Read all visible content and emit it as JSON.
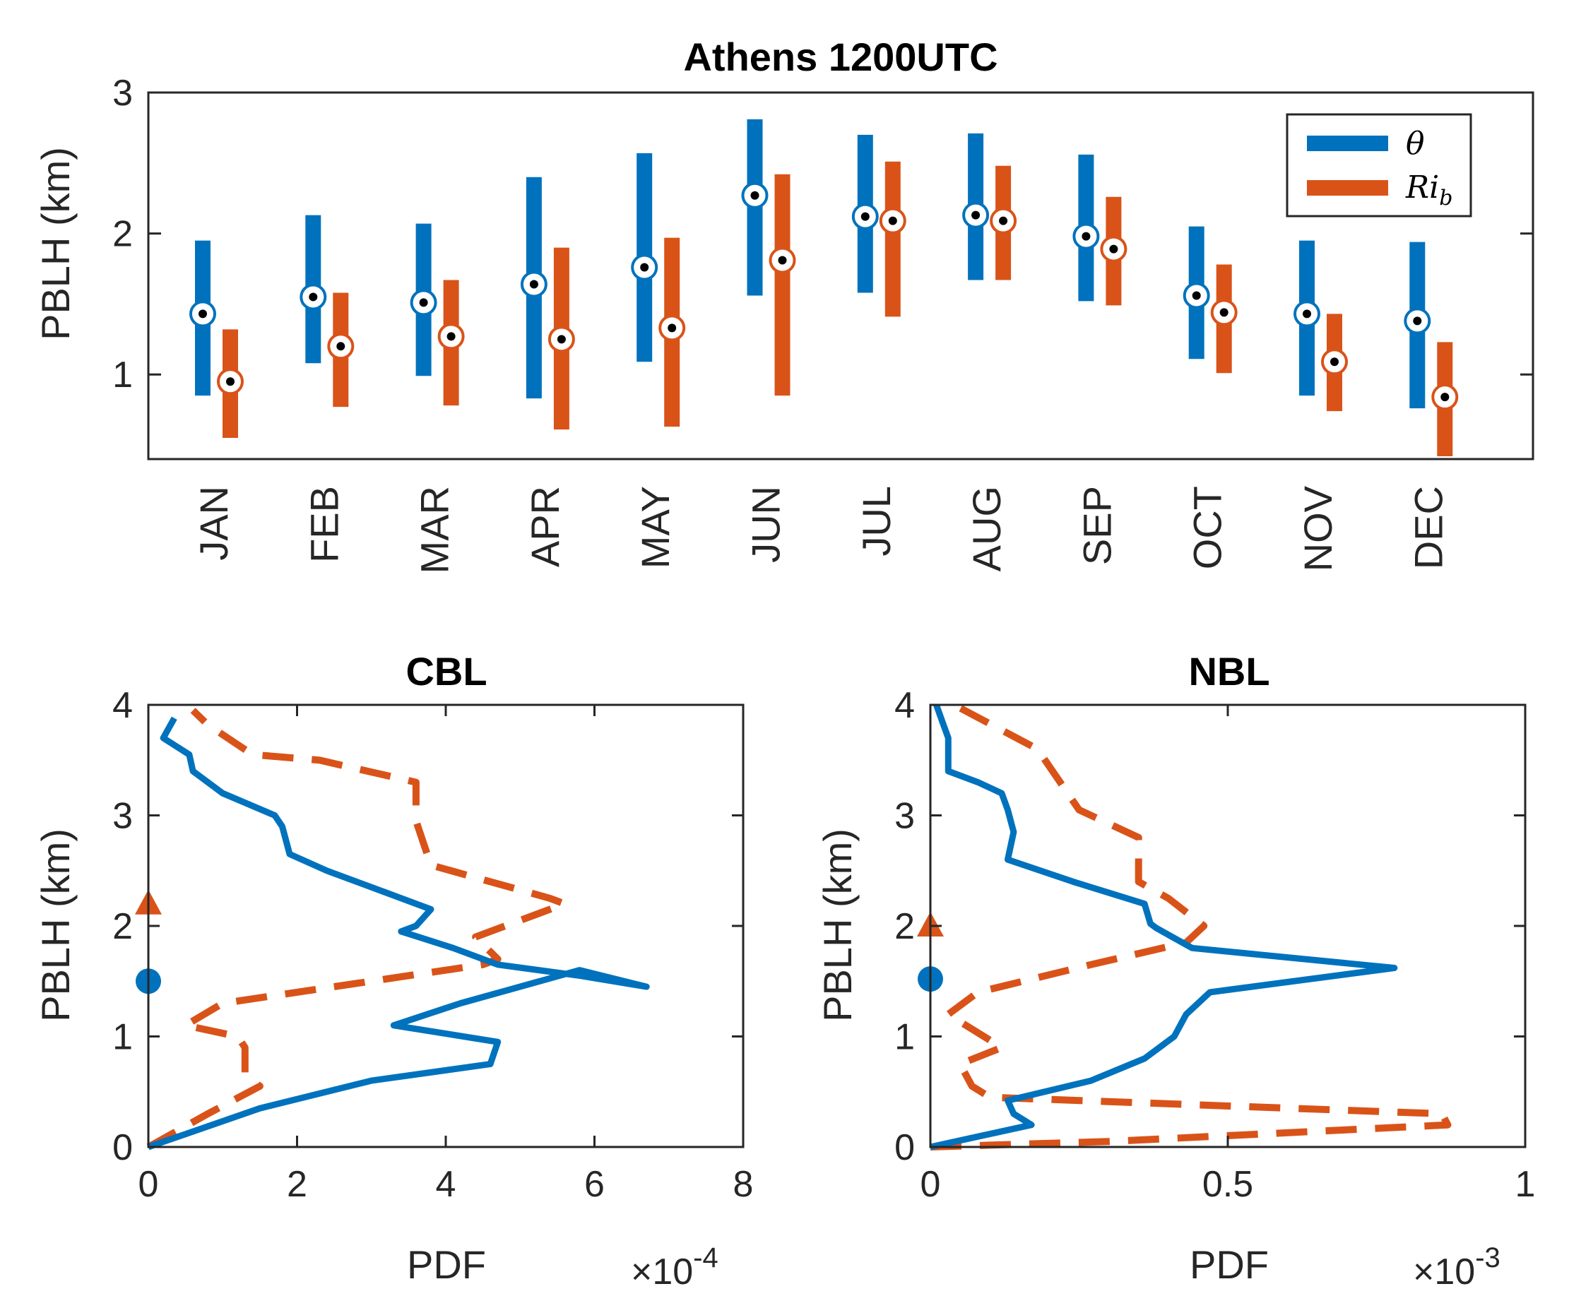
{
  "colors": {
    "theta": "#0072BD",
    "ri": "#D95319",
    "axis": "#262626"
  },
  "chart_data": [
    {
      "id": "top",
      "type": "range-bar",
      "title": "Athens 1200UTC",
      "ylabel": "PBLH (km)",
      "xlabel": "",
      "ylim": [
        0.4,
        3
      ],
      "yticks": [
        1,
        2,
        3
      ],
      "categories": [
        "JAN",
        "FEB",
        "MAR",
        "APR",
        "MAY",
        "JUN",
        "JUL",
        "AUG",
        "SEP",
        "OCT",
        "NOV",
        "DEC"
      ],
      "legend": {
        "location": "top-right",
        "entries": [
          {
            "key": "theta",
            "label": "θ"
          },
          {
            "key": "ri",
            "label": "Ri",
            "sub": "b"
          }
        ]
      },
      "series": [
        {
          "name": "θ",
          "key": "theta",
          "low": [
            0.85,
            1.08,
            0.99,
            0.83,
            1.09,
            1.56,
            1.58,
            1.67,
            1.52,
            1.11,
            0.85,
            0.76
          ],
          "high": [
            1.95,
            2.13,
            2.07,
            2.4,
            2.57,
            2.81,
            2.7,
            2.71,
            2.56,
            2.05,
            1.95,
            1.94
          ],
          "median": [
            1.43,
            1.55,
            1.51,
            1.64,
            1.76,
            2.27,
            2.12,
            2.13,
            1.98,
            1.56,
            1.43,
            1.38
          ]
        },
        {
          "name": "Ri_b",
          "key": "ri",
          "low": [
            0.55,
            0.77,
            0.78,
            0.61,
            0.63,
            0.85,
            1.41,
            1.67,
            1.49,
            1.01,
            0.74,
            0.42
          ],
          "high": [
            1.32,
            1.58,
            1.67,
            1.9,
            1.97,
            2.42,
            2.51,
            2.48,
            2.26,
            1.78,
            1.43,
            1.23
          ],
          "median": [
            0.95,
            1.2,
            1.27,
            1.25,
            1.33,
            1.81,
            2.09,
            2.09,
            1.89,
            1.44,
            1.09,
            0.84
          ]
        }
      ]
    },
    {
      "id": "cbl",
      "type": "line",
      "title": "CBL",
      "xlabel": "PDF",
      "ylabel": "PBLH (km)",
      "xlim": [
        0,
        8
      ],
      "ylim": [
        0,
        4
      ],
      "xticks": [
        0,
        2,
        4,
        6,
        8
      ],
      "yticks": [
        0,
        1,
        2,
        3,
        4
      ],
      "exponent_base": "×10",
      "exponent_power": "-4",
      "series": [
        {
          "name": "θ",
          "key": "theta",
          "style": "solid",
          "x": [
            0,
            1.5,
            3.0,
            4.6,
            4.7,
            3.3,
            4.2,
            5.8,
            6.7,
            5.8,
            4.7,
            4.1,
            3.4,
            3.6,
            3.8,
            3.2,
            2.4,
            1.9,
            1.8,
            1.7,
            1.0,
            0.6,
            0.55,
            0.2,
            0.35
          ],
          "y": [
            0,
            0.35,
            0.6,
            0.75,
            0.95,
            1.1,
            1.3,
            1.6,
            1.45,
            1.55,
            1.65,
            1.8,
            1.95,
            2.0,
            2.15,
            2.3,
            2.5,
            2.65,
            2.9,
            3.0,
            3.2,
            3.4,
            3.55,
            3.7,
            3.88
          ]
        },
        {
          "name": "Ri_b",
          "key": "ri",
          "style": "dashed",
          "x": [
            0,
            0.8,
            1.5,
            1.3,
            1.3,
            1.2,
            0.5,
            1.0,
            4.5,
            4.7,
            4.4,
            5.6,
            5.4,
            3.8,
            3.7,
            3.6,
            3.6,
            2.3,
            1.4,
            0.8,
            0.6
          ],
          "y": [
            0,
            0.3,
            0.55,
            0.65,
            0.9,
            1.0,
            1.1,
            1.3,
            1.65,
            1.7,
            1.9,
            2.2,
            2.25,
            2.55,
            2.75,
            2.95,
            3.3,
            3.5,
            3.55,
            3.82,
            3.95
          ]
        }
      ],
      "markers": [
        {
          "key": "theta",
          "shape": "circle",
          "x": 0,
          "y": 1.5
        },
        {
          "key": "ri",
          "shape": "triangle",
          "x": 0,
          "y": 2.2
        }
      ]
    },
    {
      "id": "nbl",
      "type": "line",
      "title": "NBL",
      "xlabel": "PDF",
      "ylabel": "PBLH (km)",
      "xlim": [
        0,
        1
      ],
      "ylim": [
        0,
        4
      ],
      "xticks": [
        0,
        0.5,
        1
      ],
      "xtick_labels": [
        "0",
        "0.5",
        "1"
      ],
      "yticks": [
        0,
        1,
        2,
        3,
        4
      ],
      "exponent_base": "×10",
      "exponent_power": "-3",
      "series": [
        {
          "name": "θ",
          "key": "theta",
          "style": "solid",
          "x": [
            0,
            0.17,
            0.14,
            0.13,
            0.27,
            0.36,
            0.41,
            0.43,
            0.47,
            0.78,
            0.44,
            0.38,
            0.37,
            0.36,
            0.24,
            0.13,
            0.14,
            0.13,
            0.12,
            0.08,
            0.03,
            0.03,
            0.02,
            0.01
          ],
          "y": [
            0,
            0.2,
            0.3,
            0.42,
            0.6,
            0.8,
            1.0,
            1.2,
            1.4,
            1.62,
            1.8,
            1.98,
            2.02,
            2.2,
            2.4,
            2.6,
            2.85,
            3.05,
            3.2,
            3.3,
            3.4,
            3.7,
            3.85,
            4.0
          ]
        },
        {
          "name": "Ri_b",
          "key": "ri",
          "style": "dashed",
          "x": [
            0,
            0.3,
            0.87,
            0.86,
            0.1,
            0.07,
            0.05,
            0.12,
            0.03,
            0.08,
            0.27,
            0.43,
            0.46,
            0.4,
            0.35,
            0.35,
            0.25,
            0.18,
            0.04
          ],
          "y": [
            0,
            0.05,
            0.2,
            0.3,
            0.45,
            0.55,
            0.75,
            0.9,
            1.2,
            1.4,
            1.65,
            1.85,
            2.0,
            2.25,
            2.4,
            2.8,
            3.05,
            3.6,
            4.0
          ]
        }
      ],
      "markers": [
        {
          "key": "theta",
          "shape": "circle",
          "x": 0,
          "y": 1.52
        },
        {
          "key": "ri",
          "shape": "triangle",
          "x": 0,
          "y": 2.0
        }
      ]
    }
  ]
}
